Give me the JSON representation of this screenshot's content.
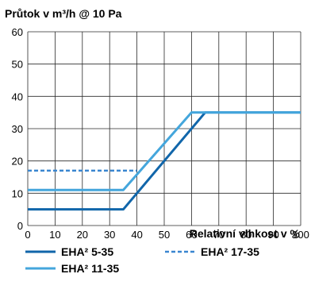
{
  "chart_data": {
    "type": "line",
    "title": "Průtok v m³/h @ 10 Pa",
    "xlabel": "Relativní vlhkost v %",
    "ylabel": "",
    "xlim": [
      0,
      100
    ],
    "ylim": [
      0,
      60
    ],
    "x_ticks": [
      "0",
      "10",
      "20",
      "30",
      "40",
      "50",
      "60",
      "70",
      "80",
      "90",
      "100"
    ],
    "y_ticks": [
      "0",
      "10",
      "20",
      "30",
      "40",
      "50",
      "60"
    ],
    "grid": true,
    "legend_position": "bottom",
    "series": [
      {
        "name": "EHA² 5-35",
        "color": "#1166aa",
        "style": "solid",
        "points": [
          [
            0,
            5
          ],
          [
            35,
            5
          ],
          [
            65,
            35
          ],
          [
            100,
            35
          ]
        ]
      },
      {
        "name": "EHA² 11-35",
        "color": "#44a6dc",
        "style": "solid",
        "points": [
          [
            0,
            11
          ],
          [
            35,
            11
          ],
          [
            60,
            35
          ],
          [
            100,
            35
          ]
        ]
      },
      {
        "name": "EHA² 17-35",
        "color": "#3a86d0",
        "style": "dashed",
        "points": [
          [
            0,
            17
          ],
          [
            40,
            17
          ]
        ]
      }
    ]
  }
}
